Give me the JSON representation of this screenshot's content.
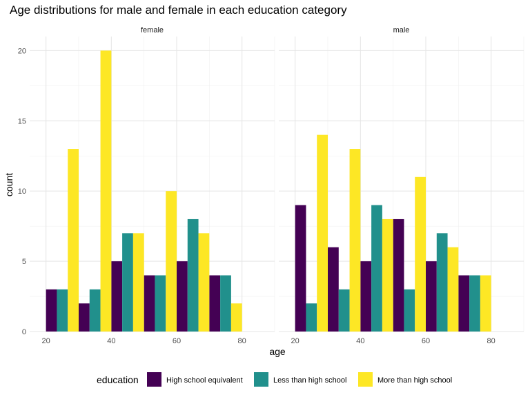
{
  "chart_data": {
    "type": "bar",
    "title": "Age distributions for male and female in each education category",
    "xlabel": "age",
    "ylabel": "count",
    "facets": [
      "female",
      "male"
    ],
    "legend": {
      "title": "education",
      "placement": "bottom",
      "entries": [
        {
          "name": "High school equivalent",
          "color": "#440154"
        },
        {
          "name": "Less than high school",
          "color": "#21908C"
        },
        {
          "name": "More than high school",
          "color": "#FDE725"
        }
      ]
    },
    "x_bins": [
      25,
      35,
      45,
      55,
      65,
      75,
      85
    ],
    "xlim": [
      15,
      90
    ],
    "ylim": [
      0,
      21
    ],
    "x_ticks": [
      20,
      40,
      60,
      80
    ],
    "y_ticks": [
      0,
      5,
      10,
      15,
      20
    ],
    "grid": true,
    "panels": [
      {
        "facet": "female",
        "series": [
          {
            "name": "High school equivalent",
            "values": [
              3,
              2,
              5,
              4,
              5,
              4,
              0
            ]
          },
          {
            "name": "Less than high school",
            "values": [
              3,
              3,
              7,
              4,
              8,
              4,
              0
            ]
          },
          {
            "name": "More than high school",
            "values": [
              13,
              20,
              7,
              10,
              7,
              2,
              0
            ]
          }
        ]
      },
      {
        "facet": "male",
        "series": [
          {
            "name": "High school equivalent",
            "values": [
              9,
              6,
              5,
              8,
              5,
              4,
              0
            ]
          },
          {
            "name": "Less than high school",
            "values": [
              2,
              3,
              9,
              3,
              7,
              4,
              0
            ]
          },
          {
            "name": "More than high school",
            "values": [
              14,
              13,
              8,
              11,
              6,
              4,
              0
            ]
          }
        ]
      }
    ]
  }
}
